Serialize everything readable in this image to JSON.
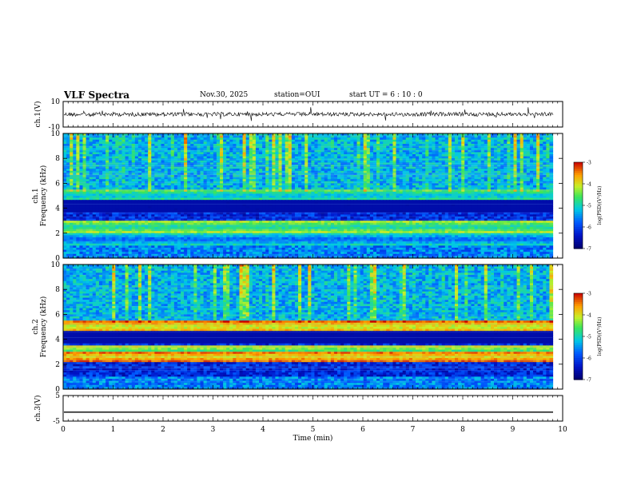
{
  "header": {
    "title": "VLF Spectra",
    "date": "Nov.30, 2025",
    "station": "station=OUI",
    "start_ut": "start  UT =  6 : 10 : 0"
  },
  "chart_data": [
    {
      "type": "line",
      "name": "ch1-waveform",
      "ylabel": "ch.1(V)",
      "ylim": [
        -10,
        10
      ],
      "yticks": [
        "10",
        "-10"
      ],
      "xlim": [
        0,
        10
      ],
      "baseline": 0,
      "series": [
        {
          "values": "noisy waveform around 0 V (±1 V) with spikes"
        }
      ]
    },
    {
      "type": "heatmap",
      "name": "ch1-spectrogram",
      "ylabel": "ch.1\nFrequency  (kHz)",
      "ylim": [
        0,
        10
      ],
      "yticks": [
        "0",
        "2",
        "4",
        "6",
        "8",
        "10"
      ],
      "xlim": [
        0,
        10
      ],
      "colorbar": {
        "label": "log(PSD)(V²/Hz)",
        "range": [
          -7,
          -3
        ],
        "ticks": [
          "-3",
          "-4",
          "-5",
          "-6",
          "-7"
        ]
      },
      "bands_khz": [
        {
          "center": 2.5,
          "level": -5
        },
        {
          "center": 5.0,
          "level": -5.3
        },
        {
          "center": 1.5,
          "level": -5.8
        }
      ],
      "data_ends_min": 9.8
    },
    {
      "type": "heatmap",
      "name": "ch2-spectrogram",
      "ylabel": "ch.2\nFrequency  (kHz)",
      "ylim": [
        0,
        10
      ],
      "yticks": [
        "0",
        "2",
        "4",
        "6",
        "8",
        "10"
      ],
      "xlim": [
        0,
        10
      ],
      "colorbar": {
        "label": "log(PSD)(V²/Hz)",
        "range": [
          -7,
          -3
        ],
        "ticks": [
          "-3",
          "-4",
          "-5",
          "-6",
          "-7"
        ]
      },
      "bands_khz": [
        {
          "center": 2.6,
          "level": -4.0
        },
        {
          "center": 5.0,
          "level": -4.2
        },
        {
          "center": 3.0,
          "level": -4.8
        }
      ],
      "data_ends_min": 9.8
    },
    {
      "type": "line",
      "name": "ch3-waveform",
      "ylabel": "ch.3(V)",
      "ylim": [
        -5,
        5
      ],
      "yticks": [
        "5",
        "-5"
      ],
      "xlim": [
        0,
        10
      ],
      "xlabel": "Time  (min)",
      "xticks": [
        "0",
        "1",
        "2",
        "3",
        "4",
        "5",
        "6",
        "7",
        "8",
        "9",
        "10"
      ],
      "series": [
        {
          "values": "flat line at -1.5 V"
        }
      ],
      "constant_value": -1.5
    }
  ]
}
